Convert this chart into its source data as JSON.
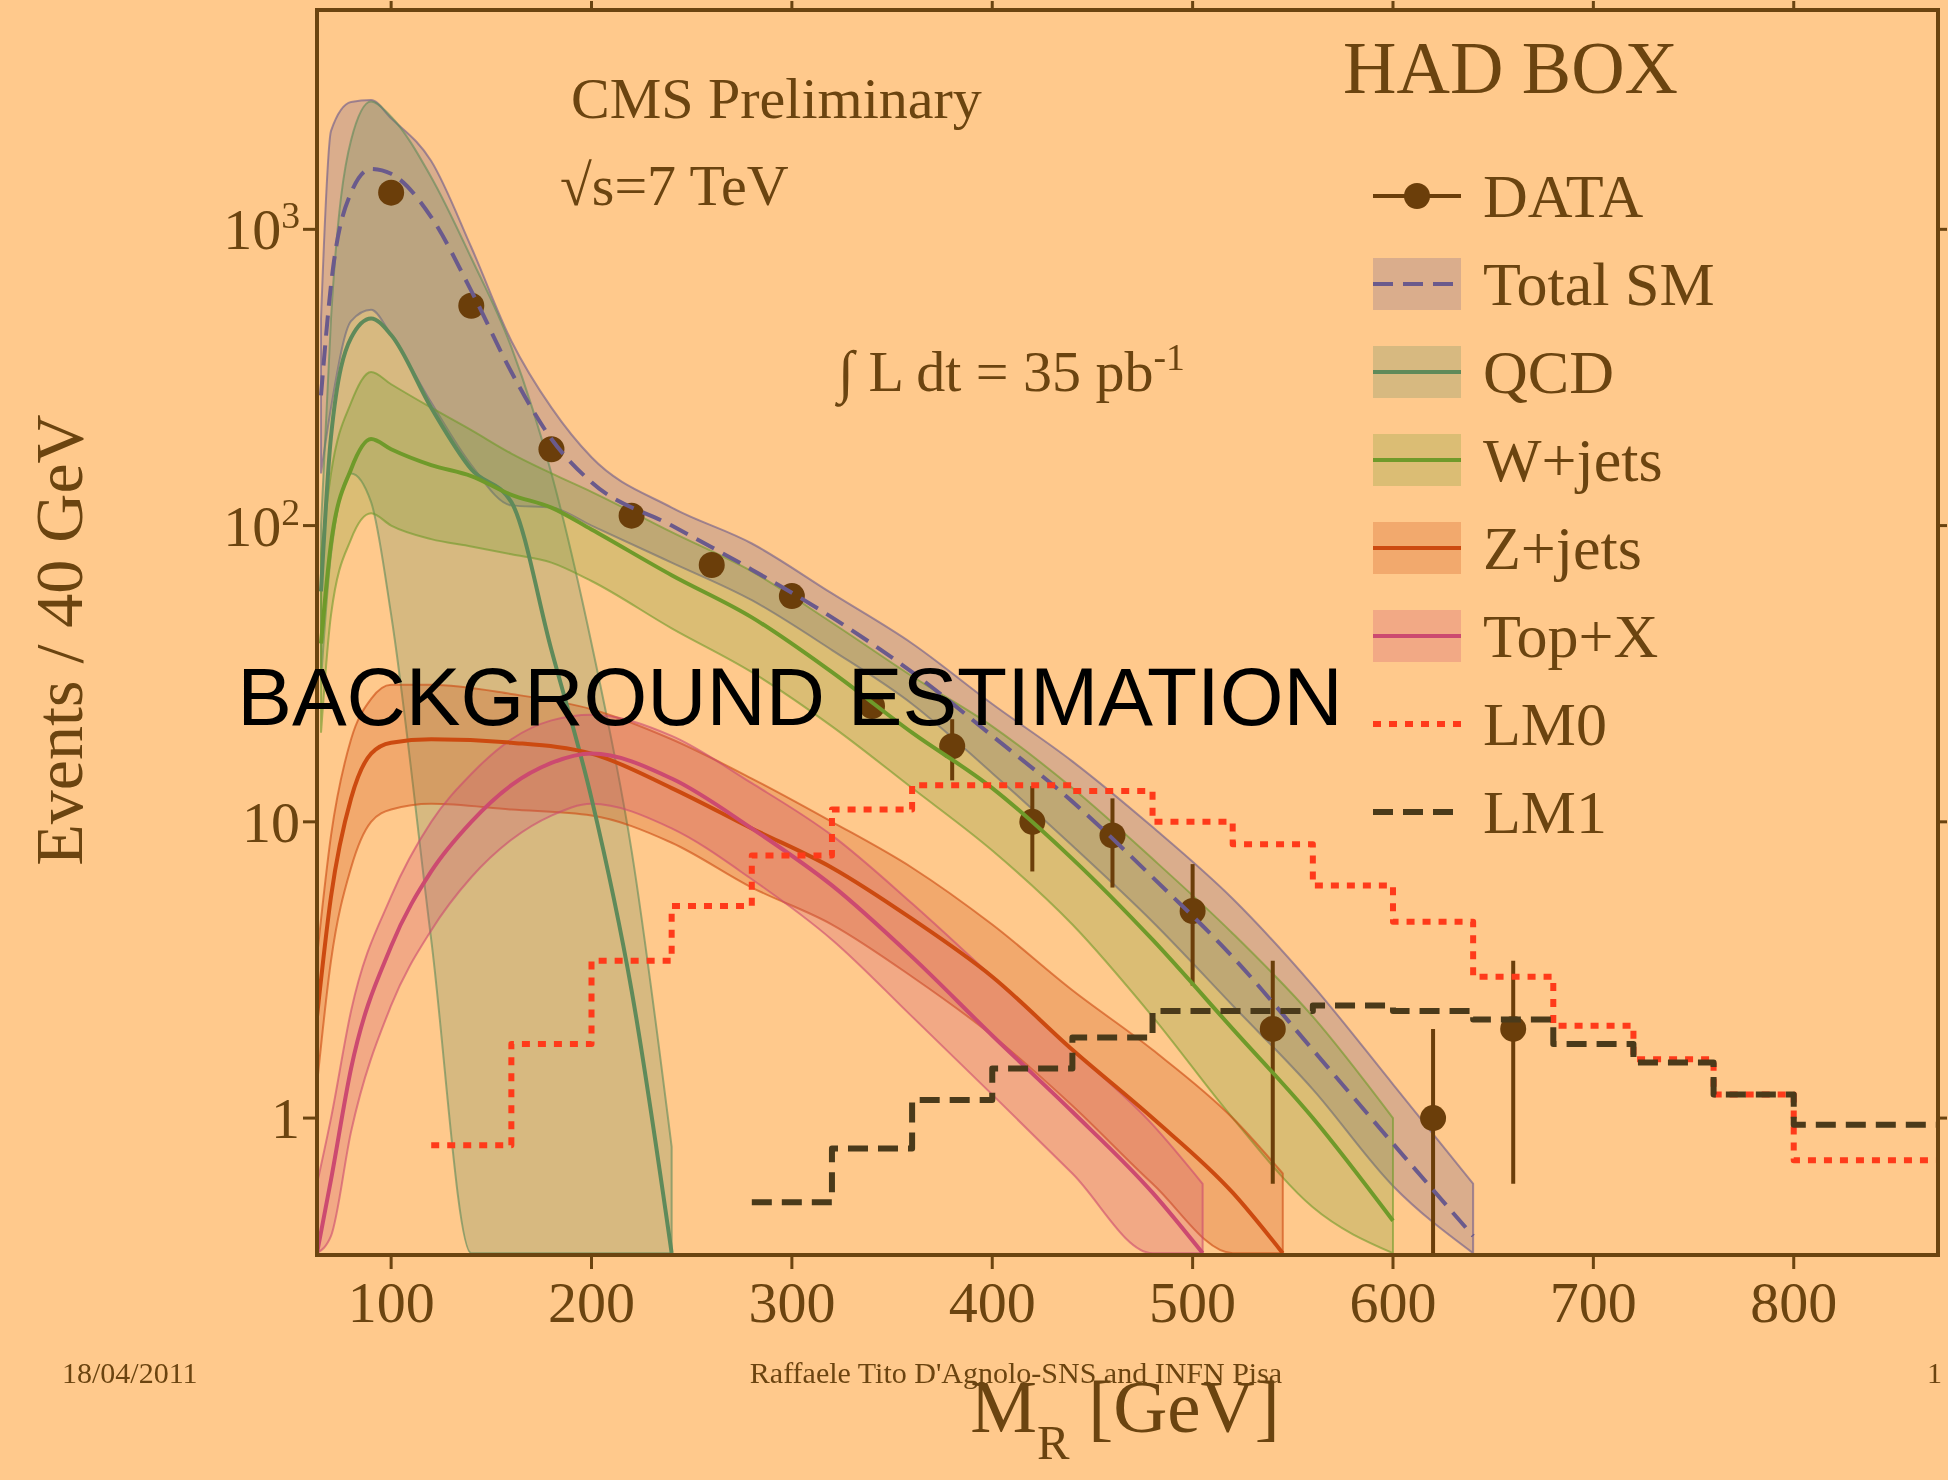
{
  "chart_data": {
    "type": "line",
    "title": "BACKGROUND ESTIMATION",
    "xlabel": "M$_{R}$ [GeV]",
    "ylabel": "Events / 40 GeV",
    "legend_title": "HAD BOX",
    "annotations": [
      "CMS Preliminary",
      "√s=7 TeV",
      "∫ L dt = 35 pb$^{-1}$",
      "18/04/2011",
      "Raffaele Tito D'Agnolo-SNS and INFN Pisa",
      "1"
    ],
    "xlim": [
      63,
      872
    ],
    "ylim": [
      0.345,
      5500
    ],
    "log": "y",
    "legend": "top right",
    "xticks": [
      100,
      200,
      300,
      400,
      500,
      600,
      700,
      800
    ],
    "yticks": [
      1,
      10,
      {
        "value": 100,
        "label": "10$^{2}$"
      },
      {
        "value": 1000,
        "label": "10$^{3}$"
      }
    ],
    "series": [
      {
        "name": "DATA",
        "type": "scatter",
        "marker": "circle",
        "color": "#6b3e0a",
        "x": [
          100,
          140,
          180,
          220,
          260,
          300,
          340,
          380,
          420,
          460,
          500,
          540,
          620,
          660
        ],
        "values": [
          1330,
          552,
          181,
          108,
          73.6,
          57.8,
          24.6,
          18,
          10,
          9,
          5,
          2,
          1,
          2
        ],
        "errors": [
          null,
          null,
          null,
          null,
          null,
          null,
          null,
          4.2,
          3.2,
          3,
          2.2,
          1.4,
          [
            0.35,
            2
          ],
          1.4
        ]
      },
      {
        "name": "Total SM",
        "type": "line",
        "line_style": "dashed",
        "color": "#6a5a8c",
        "x": [
          65,
          70,
          80,
          90,
          100,
          120,
          140,
          160,
          180,
          200,
          240,
          280,
          320,
          360,
          400,
          440,
          480,
          520,
          560,
          600,
          640
        ],
        "values": [
          275,
          650,
          1330,
          1600,
          1540,
          1100,
          620,
          330,
          196,
          140,
          100,
          71,
          49,
          32,
          19.5,
          11.7,
          6.5,
          3.5,
          1.7,
          0.82,
          0.4
        ],
        "upper": [
          500,
          2150,
          2690,
          2730,
          2370,
          1700,
          870,
          420,
          250,
          170,
          115,
          87,
          59,
          40,
          25,
          16,
          9.6,
          5.5,
          2.8,
          1.3,
          0.6
        ],
        "lower": [
          150,
          250,
          490,
          535,
          440,
          260,
          160,
          117,
          115,
          100,
          75,
          56,
          38,
          25,
          14.6,
          8.3,
          4.6,
          2.4,
          1.25,
          0.59,
          0.35
        ]
      },
      {
        "name": "QCD",
        "type": "line",
        "line_style": "solid",
        "color": "#5f8a5a",
        "x": [
          65,
          70,
          80,
          90,
          100,
          120,
          140,
          160,
          180,
          200,
          220,
          240
        ],
        "values": [
          60,
          200,
          430,
          500,
          440,
          250,
          155,
          120,
          38,
          12,
          2.7,
          0.35
        ],
        "upper": [
          100,
          500,
          2000,
          2700,
          2400,
          1500,
          800,
          400,
          150,
          40,
          8,
          0.8
        ],
        "lower": [
          30,
          80,
          150,
          120,
          50,
          4,
          0.35,
          0.35,
          0.35,
          0.35,
          0.35,
          0.35
        ]
      },
      {
        "name": "W+jets",
        "type": "line",
        "line_style": "solid",
        "color": "#6f9a2a",
        "x": [
          65,
          70,
          80,
          90,
          100,
          120,
          140,
          160,
          180,
          200,
          240,
          280,
          320,
          360,
          400,
          440,
          480,
          520,
          560,
          600
        ],
        "values": [
          40,
          87,
          155,
          196,
          181,
          160,
          147,
          127,
          115,
          97,
          68,
          49,
          32,
          20,
          13,
          7.5,
          4,
          2,
          1,
          0.45
        ],
        "upper": [
          80,
          150,
          260,
          330,
          300,
          250,
          210,
          175,
          150,
          130,
          95,
          70,
          47,
          31,
          21,
          13,
          7.5,
          4.2,
          2.2,
          1
        ],
        "lower": [
          20,
          50,
          90,
          110,
          100,
          90,
          85,
          80,
          75,
          65,
          45,
          32,
          21,
          13,
          8,
          4.5,
          2.2,
          1,
          0.5,
          0.35
        ]
      },
      {
        "name": "Z+jets",
        "type": "line",
        "line_style": "solid",
        "color": "#cc4a10",
        "x": [
          63,
          70,
          80,
          90,
          100,
          120,
          160,
          200,
          240,
          280,
          320,
          360,
          400,
          440,
          480,
          520,
          545
        ],
        "values": [
          2.2,
          5.6,
          12,
          17,
          18.5,
          19,
          18.5,
          17,
          13,
          9.5,
          7,
          4.7,
          3,
          1.7,
          1,
          0.56,
          0.35
        ],
        "upper": [
          3.5,
          9,
          19,
          26,
          29,
          29,
          27,
          24,
          19,
          14,
          10,
          7,
          4.5,
          2.7,
          1.7,
          1,
          0.65
        ],
        "lower": [
          1.3,
          3.4,
          7,
          10,
          11,
          11.5,
          11,
          10.5,
          8.5,
          6,
          4.5,
          3,
          1.9,
          1.1,
          0.6,
          0.35,
          0.35
        ]
      },
      {
        "name": "Top+X",
        "type": "line",
        "line_style": "solid",
        "color": "#cc4a70",
        "x": [
          63,
          70,
          80,
          100,
          120,
          140,
          160,
          180,
          200,
          240,
          280,
          320,
          360,
          400,
          440,
          480,
          505
        ],
        "values": [
          0.35,
          0.62,
          1.47,
          3.8,
          6.8,
          10,
          13.3,
          15.8,
          17,
          14,
          9.5,
          6.1,
          3.5,
          1.9,
          1.05,
          0.56,
          0.35
        ],
        "upper": [
          0.6,
          1,
          2.3,
          5.6,
          10,
          14.5,
          19,
          22,
          23,
          19.5,
          13.5,
          9,
          5.3,
          3,
          1.7,
          0.95,
          0.6
        ],
        "lower": [
          0.35,
          0.4,
          0.9,
          2.4,
          4.3,
          6.5,
          8.7,
          10.5,
          11.5,
          9.5,
          6.4,
          4,
          2.2,
          1.2,
          0.65,
          0.35,
          0.35
        ]
      },
      {
        "name": "LM0",
        "type": "step",
        "line_style": "dotted",
        "color": "#ff3a1a",
        "x": [
          120,
          160,
          200,
          240,
          280,
          320,
          360,
          400,
          440,
          480,
          520,
          560,
          600,
          640,
          680,
          720,
          760,
          800,
          840
        ],
        "values": [
          0.81,
          1.78,
          3.4,
          5.2,
          7.7,
          11,
          13.3,
          13.3,
          12.7,
          10,
          8.4,
          6.1,
          4.6,
          3,
          2.05,
          1.58,
          1.2,
          0.72,
          0.72
        ]
      },
      {
        "name": "LM1",
        "type": "step",
        "line_style": "dashed",
        "color": "#4a3a1a",
        "x": [
          280,
          320,
          360,
          400,
          440,
          480,
          520,
          560,
          600,
          640,
          680,
          720,
          760,
          800,
          840
        ],
        "values": [
          0.52,
          0.79,
          1.15,
          1.47,
          1.87,
          2.3,
          2.3,
          2.4,
          2.3,
          2.15,
          1.78,
          1.54,
          1.2,
          0.95,
          0.95
        ]
      }
    ]
  }
}
